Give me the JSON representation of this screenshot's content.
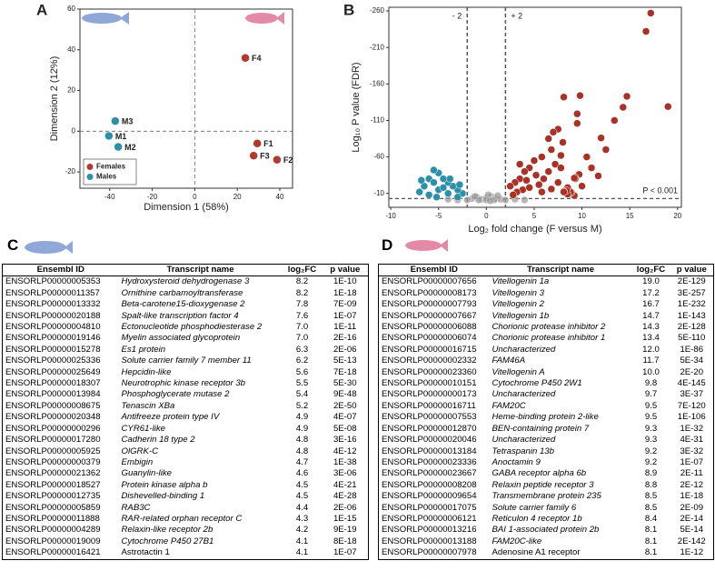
{
  "chart_data": [
    {
      "type": "scatter",
      "label": "A",
      "xlabel": "Dimension 1 (58%)",
      "ylabel": "Dimension 2 (12%)",
      "xlim": [
        -54,
        46
      ],
      "ylim": [
        -28,
        60
      ],
      "xticks": [
        -40,
        -20,
        0,
        20,
        40
      ],
      "yticks": [
        -20,
        0,
        20,
        40,
        60
      ],
      "vlines": [
        0
      ],
      "hlines": [
        0
      ],
      "legend": "lower left",
      "series": [
        {
          "name": "Females",
          "color": "#b03a2e",
          "labels": [
            "F1",
            "F2",
            "F3",
            "F4"
          ],
          "x": [
            29.4,
            38.7,
            27.7,
            23.8
          ],
          "values": [
            -6,
            -14,
            -12,
            36
          ]
        },
        {
          "name": "Males",
          "color": "#2e8fa8",
          "labels": [
            "M1",
            "M2",
            "M3"
          ],
          "x": [
            -40.4,
            -36,
            -37.4
          ],
          "values": [
            -2.3,
            -7.7,
            5
          ]
        }
      ]
    },
    {
      "type": "scatter",
      "label": "B",
      "xlabel": "Log₂ fold change (F versus M)",
      "ylabel": "Log₁₀ P value (FDR)",
      "xlim": [
        -10.2,
        20.4
      ],
      "ylim": [
        9,
        -265
      ],
      "xticks": [
        -10,
        -5,
        0,
        5,
        10,
        15,
        20
      ],
      "yticks": [
        -260,
        -210,
        -160,
        -110,
        -60,
        -10
      ],
      "vlines": [
        {
          "value": -2,
          "label": "- 2"
        },
        {
          "value": 2,
          "label": "+ 2"
        }
      ],
      "hlines": [
        {
          "value": -3,
          "label": "P < 0.001"
        }
      ],
      "series": [
        {
          "color": "#999999",
          "x": [
            -1.5,
            -1,
            -0.5,
            0,
            0.5,
            1,
            1.5,
            -2,
            2,
            0.2,
            -0.8,
            0.8,
            -3,
            3,
            -4,
            4,
            1.2,
            -1.2,
            0,
            0.4
          ],
          "values": [
            -3,
            -5,
            -2,
            -4,
            -6,
            -3,
            -2,
            -1,
            -1,
            -8,
            -1,
            -1,
            -1,
            -2,
            -2,
            -1,
            -7,
            -6,
            -1,
            0
          ]
        },
        {
          "color": "#2e8fa8",
          "x": [
            -2.5,
            -3,
            -3.5,
            -4,
            -4.5,
            -5,
            -5.5,
            -6,
            -6.5,
            -7,
            -5,
            -4,
            -3,
            -6,
            -5.5,
            -4.5,
            -3.8,
            -2.8,
            -6.8,
            -5.2
          ],
          "values": [
            -10,
            -15,
            -20,
            -25,
            -30,
            -38,
            -42,
            -30,
            -20,
            -12,
            -15,
            -10,
            -5,
            -8,
            -25,
            -18,
            -30,
            -22,
            -28,
            -5
          ]
        },
        {
          "color": "#a93226",
          "x": [
            19.0,
            17.2,
            16.7,
            14.7,
            14.3,
            13.4,
            12.0,
            11.7,
            10.0,
            9.8,
            9.7,
            9.5,
            9.5,
            9.3,
            9.3,
            9.2,
            9.2,
            8.9,
            8.8,
            8.5,
            8.5,
            8.4,
            8.1,
            8.1,
            8.1,
            7.5,
            7.0,
            6.5,
            6.8,
            5.8,
            5.0,
            4.5,
            4.0,
            3.5,
            3,
            2.5,
            3.8,
            4.5,
            5.5,
            6.0,
            6.5,
            7.2,
            7.8,
            5.2,
            4.2,
            3.2,
            2.8,
            5.8,
            6.8,
            7.5,
            11,
            12.5,
            10.5,
            8.0,
            7.8,
            3.5
          ],
          "values": [
            -129,
            -257,
            -232,
            -143,
            -128,
            -110,
            -86,
            -34,
            -20,
            -144,
            -36,
            -119,
            -106,
            -32,
            -30,
            -31,
            -7,
            -11,
            -12,
            -18,
            -9,
            -14,
            -13,
            -142,
            -12,
            -98,
            -94,
            -85,
            -70,
            -60,
            -55,
            -45,
            -40,
            -30,
            -25,
            -20,
            -15,
            -18,
            -22,
            -30,
            -40,
            -50,
            -62,
            -35,
            -28,
            -12,
            -8,
            -12,
            -16,
            -25,
            -45,
            -70,
            -60,
            -80,
            -45,
            -50
          ]
        }
      ]
    }
  ],
  "tables": [
    {
      "label": "C",
      "columns": [
        "Ensembl ID",
        "Transcript name",
        "log₂FC",
        "p value"
      ],
      "rows": [
        [
          "ENSORLP00000005353",
          "Hydroxysteroid dehydrogenase 3",
          "8.2",
          "1E-10"
        ],
        [
          "ENSORLP00000011357",
          "Ornithine carbamoyltransferase",
          "8.2",
          "1E-18"
        ],
        [
          "ENSORLP00000013332",
          "Beta-carotene15-dioxygenase 2",
          "7.8",
          "7E-09"
        ],
        [
          "ENSORLP00000020188",
          "Spalt-like transcription factor 4",
          "7.6",
          "1E-07"
        ],
        [
          "ENSORLP00000004810",
          "Ectonucleotide phosphodiesterase 2",
          "7.0",
          "1E-11"
        ],
        [
          "ENSORLP00000019146",
          "Myelin associated glycoprotein",
          "7.0",
          "2E-16"
        ],
        [
          "ENSORLP00000015278",
          "Es1 protein",
          "6.3",
          "2E-06"
        ],
        [
          "ENSORLP00000025336",
          "Solute carrier family 7 member 11",
          "6.2",
          "5E-13"
        ],
        [
          "ENSORLP00000025649",
          "Hepcidin-like",
          "5.6",
          "7E-18"
        ],
        [
          "ENSORLP00000018307",
          "Neurotrophic kinase receptor 3b",
          "5.5",
          "5E-30"
        ],
        [
          "ENSORLP00000013984",
          "Phosphoglycerate mutase 2",
          "5.4",
          "9E-48"
        ],
        [
          "ENSORLP00000008675",
          "Tenascin XBa",
          "5.2",
          "2E-50"
        ],
        [
          "ENSORLP00000020348",
          "Antifreeze protein type IV",
          "4.9",
          "4E-07"
        ],
        [
          "ENSORLP00000000296",
          "CYR61-like",
          "4.9",
          "5E-08"
        ],
        [
          "ENSORLP00000017280",
          "Cadherin 18 type 2",
          "4.8",
          "3E-16"
        ],
        [
          "ENSORLP00000005925",
          "OlGRK-C",
          "4.8",
          "4E-12"
        ],
        [
          "ENSORLP00000000379",
          "Embigin",
          "4.7",
          "1E-38"
        ],
        [
          "ENSORLP00000021362",
          "Guanylin-like",
          "4.6",
          "3E-06"
        ],
        [
          "ENSORLP00000018527",
          "Protein kinase alpha b",
          "4.5",
          "4E-21"
        ],
        [
          "ENSORLP00000012735",
          "Dishevelled-binding 1",
          "4.5",
          "4E-28"
        ],
        [
          "ENSORLP00000005859",
          "RAB3C",
          "4.4",
          "2E-06"
        ],
        [
          "ENSORLP00000011888",
          "RAR-related orphan receptor C",
          "4.3",
          "1E-15"
        ],
        [
          "ENSORLP00000004289",
          "Relaxin-like receptor 2b",
          "4.2",
          "9E-19"
        ],
        [
          "ENSORLP00000019009",
          "Cytochrome P450 27B1",
          "4.1",
          "8E-18"
        ],
        [
          "ENSORLP00000016421",
          "Astrotactin 1",
          "4.1",
          "1E-07"
        ]
      ]
    },
    {
      "label": "D",
      "columns": [
        "Ensembl ID",
        "Transcript name",
        "log₂FC",
        "p value"
      ],
      "rows": [
        [
          "ENSORLP00000007656",
          "Vitellogenin 1a",
          "19.0",
          "2E-129"
        ],
        [
          "ENSORLP00000008173",
          "Vitellogenin 3",
          "17.2",
          "3E-257"
        ],
        [
          "ENSORLP00000007793",
          "Vitellogenin 2",
          "16.7",
          "1E-232"
        ],
        [
          "ENSORLP00000007667",
          "Vitellogenin 1b",
          "14.7",
          "1E-143"
        ],
        [
          "ENSORLP00000006088",
          "Chorionic protease inhibitor 2",
          "14.3",
          "2E-128"
        ],
        [
          "ENSORLP00000006074",
          "Chorionic protease inhibitor 1",
          "13.4",
          "5E-110"
        ],
        [
          "ENSORLP00000016715",
          "Uncharacterized",
          "12.0",
          "1E-86"
        ],
        [
          "ENSORLP00000002332",
          "FAM46A",
          "11.7",
          "5E-34"
        ],
        [
          "ENSORLP00000023360",
          "Vitellogenin A",
          "10.0",
          "2E-20"
        ],
        [
          "ENSORLP00000010151",
          "Cytochrome P450 2W1",
          "9.8",
          "4E-145"
        ],
        [
          "ENSORLP00000000173",
          "Uncharacterized",
          "9.7",
          "3E-37"
        ],
        [
          "ENSORLP00000016711",
          "FAM20C",
          "9.5",
          "7E-120"
        ],
        [
          "ENSORLP00000007553",
          "Heme-binding protein 2-like",
          "9.5",
          "1E-106"
        ],
        [
          "ENSORLP00000012870",
          "BEN-containing protein 7",
          "9.3",
          "1E-32"
        ],
        [
          "ENSORLP00000020046",
          "Uncharacterized",
          "9.3",
          "4E-31"
        ],
        [
          "ENSORLP00000013184",
          "Tetraspanin 13b",
          "9.2",
          "3E-32"
        ],
        [
          "ENSORLP00000023336",
          "Anoctamin 9",
          "9.2",
          "1E-07"
        ],
        [
          "ENSORLP00000023667",
          "GABA receptor alpha 6b",
          "8.9",
          "2E-11"
        ],
        [
          "ENSORLP00000008208",
          "Relaxin peptide receptor 3",
          "8.8",
          "2E-12"
        ],
        [
          "ENSORLP00000009654",
          "Transmembrane protein 235",
          "8.5",
          "1E-18"
        ],
        [
          "ENSORLP00000017075",
          "Solute carrier family 6",
          "8.5",
          "2E-09"
        ],
        [
          "ENSORLP00000006121",
          "Reticulon 4 receptor 1b",
          "8.4",
          "2E-14"
        ],
        [
          "ENSORLP00000013216",
          "BAI 1-associated protein 2b",
          "8.1",
          "5E-14"
        ],
        [
          "ENSORLP00000013188",
          "FAM20C-like",
          "8.1",
          "2E-142"
        ],
        [
          "ENSORLP00000007978",
          "Adenosine A1 receptor",
          "8.1",
          "1E-12"
        ]
      ]
    }
  ]
}
